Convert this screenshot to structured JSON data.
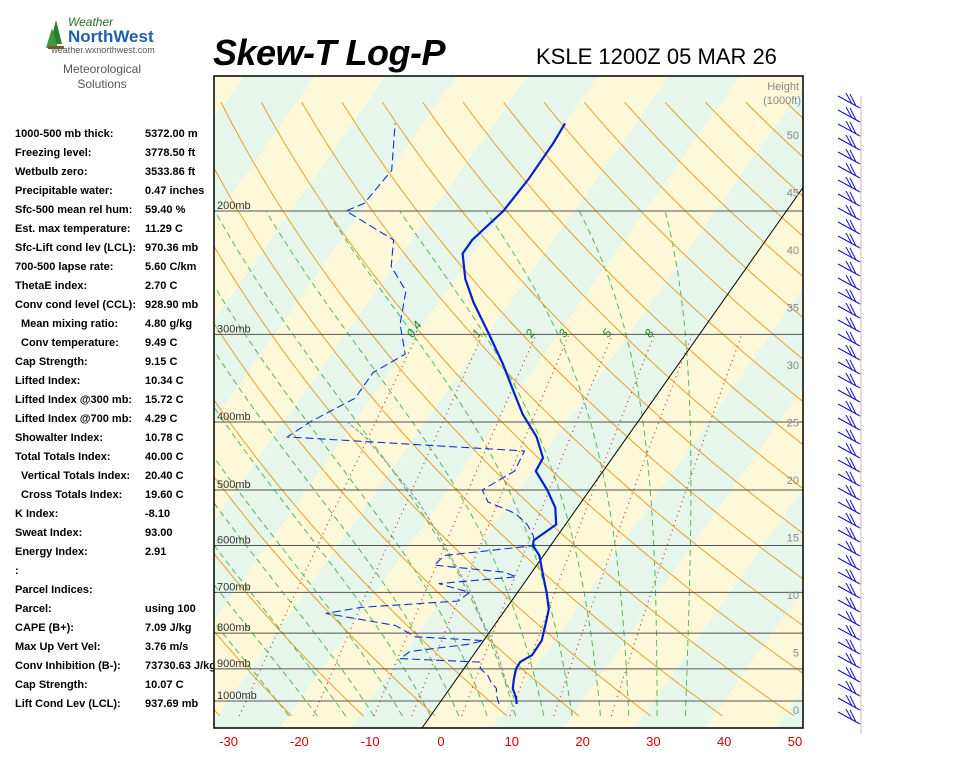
{
  "header": {
    "logo_text_1": "Weather",
    "logo_text_2": "NorthWest",
    "logo_url": "weather.wxnorthwest.com",
    "subtitle_1": "Meteorological",
    "subtitle_2": "Solutions",
    "title": "Skew-T Log-P",
    "station": "KSLE 1200Z 05 MAR 26"
  },
  "indices": [
    {
      "label": "1000-500 mb thick:",
      "value": "5372.00 m",
      "indent": false
    },
    {
      "label": "Freezing level:",
      "value": "3778.50 ft",
      "indent": false
    },
    {
      "label": "Wetbulb zero:",
      "value": "3533.86 ft",
      "indent": false
    },
    {
      "label": "Precipitable water:",
      "value": "0.47 inches",
      "indent": false
    },
    {
      "label": "Sfc-500 mean rel hum:",
      "value": "59.40 %",
      "indent": false
    },
    {
      "label": "Est. max temperature:",
      "value": "11.29 C",
      "indent": false
    },
    {
      "label": "Sfc-Lift cond lev (LCL):",
      "value": "970.36 mb",
      "indent": false
    },
    {
      "label": "700-500 lapse rate:",
      "value": "5.60 C/km",
      "indent": false
    },
    {
      "label": "ThetaE index:",
      "value": "2.70 C",
      "indent": false
    },
    {
      "label": "Conv cond level (CCL):",
      "value": "928.90 mb",
      "indent": false
    },
    {
      "label": "Mean mixing ratio:",
      "value": "4.80 g/kg",
      "indent": true
    },
    {
      "label": "Conv temperature:",
      "value": "9.49 C",
      "indent": true
    },
    {
      "label": "Cap Strength:",
      "value": "9.15 C",
      "indent": false
    },
    {
      "label": "Lifted Index:",
      "value": "10.34 C",
      "indent": false
    },
    {
      "label": "Lifted Index @300 mb:",
      "value": "15.72 C",
      "indent": false
    },
    {
      "label": "Lifted Index @700 mb:",
      "value": "4.29 C",
      "indent": false
    },
    {
      "label": "Showalter Index:",
      "value": "10.78 C",
      "indent": false
    },
    {
      "label": "Total Totals Index:",
      "value": "40.00 C",
      "indent": false
    },
    {
      "label": "Vertical Totals Index:",
      "value": "20.40 C",
      "indent": true
    },
    {
      "label": "Cross Totals Index:",
      "value": "19.60 C",
      "indent": true
    },
    {
      "label": "K Index:",
      "value": "-8.10",
      "indent": false
    },
    {
      "label": "Sweat Index:",
      "value": "93.00",
      "indent": false
    },
    {
      "label": "Energy Index:",
      "value": "2.91",
      "indent": false
    },
    {
      "label": ":",
      "value": "",
      "indent": false
    },
    {
      "label": "Parcel Indices:",
      "value": "",
      "indent": false
    },
    {
      "label": "Parcel:",
      "value": "using 100",
      "indent": false
    },
    {
      "label": "CAPE (B+):",
      "value": "7.09 J/kg",
      "indent": false
    },
    {
      "label": "Max Up Vert Vel:",
      "value": "3.76 m/s",
      "indent": false
    },
    {
      "label": "Conv Inhibition (B-):",
      "value": "73730.63 J/kg",
      "indent": false
    },
    {
      "label": "Cap Strength:",
      "value": "10.07 C",
      "indent": false
    },
    {
      "label": "Lift Cond Lev (LCL):",
      "value": "937.69 mb",
      "indent": false
    }
  ],
  "chart_data": {
    "type": "skew-t",
    "x_ticks": [
      -30,
      -20,
      -10,
      0,
      10,
      20,
      30,
      40,
      50
    ],
    "xlim": [
      -33,
      50
    ],
    "pressure_levels": [
      {
        "p": 200,
        "label": "200mb"
      },
      {
        "p": 300,
        "label": "300mb"
      },
      {
        "p": 400,
        "label": "400mb"
      },
      {
        "p": 500,
        "label": "500mb"
      },
      {
        "p": 600,
        "label": "600mb"
      },
      {
        "p": 700,
        "label": "700mb"
      },
      {
        "p": 800,
        "label": "800mb"
      },
      {
        "p": 900,
        "label": "900mb"
      },
      {
        "p": 1000,
        "label": "1000mb"
      }
    ],
    "height_axis": {
      "title_1": "Height",
      "title_2": "(1000ft)",
      "ticks": [
        0,
        5,
        10,
        15,
        20,
        25,
        30,
        35,
        40,
        45,
        50
      ]
    },
    "mixing_ratio_labels": [
      "0.4",
      "1",
      "2",
      "3",
      "5",
      "8"
    ],
    "temperature": [
      {
        "p": 1010,
        "t": 11.0
      },
      {
        "p": 990,
        "t": 10.3
      },
      {
        "p": 960,
        "t": 8.9
      },
      {
        "p": 930,
        "t": 8.1
      },
      {
        "p": 900,
        "t": 7.4
      },
      {
        "p": 880,
        "t": 7.3
      },
      {
        "p": 860,
        "t": 8.3
      },
      {
        "p": 820,
        "t": 8.2
      },
      {
        "p": 780,
        "t": 7.2
      },
      {
        "p": 740,
        "t": 6.1
      },
      {
        "p": 700,
        "t": 4.1
      },
      {
        "p": 660,
        "t": 1.8
      },
      {
        "p": 620,
        "t": -0.6
      },
      {
        "p": 600,
        "t": -2.5
      },
      {
        "p": 590,
        "t": -2.9
      },
      {
        "p": 560,
        "t": -1.3
      },
      {
        "p": 530,
        "t": -3.1
      },
      {
        "p": 500,
        "t": -6.0
      },
      {
        "p": 470,
        "t": -9.5
      },
      {
        "p": 450,
        "t": -9.8
      },
      {
        "p": 420,
        "t": -12.8
      },
      {
        "p": 390,
        "t": -17.0
      },
      {
        "p": 360,
        "t": -20.8
      },
      {
        "p": 330,
        "t": -24.9
      },
      {
        "p": 300,
        "t": -29.7
      },
      {
        "p": 270,
        "t": -35.1
      },
      {
        "p": 250,
        "t": -38.6
      },
      {
        "p": 230,
        "t": -41.5
      },
      {
        "p": 220,
        "t": -41.5
      },
      {
        "p": 200,
        "t": -40.0
      },
      {
        "p": 180,
        "t": -39.6
      },
      {
        "p": 160,
        "t": -39.7
      },
      {
        "p": 150,
        "t": -40.0
      }
    ],
    "dewpoint": [
      {
        "p": 1010,
        "t": 8.5
      },
      {
        "p": 980,
        "t": 7.2
      },
      {
        "p": 960,
        "t": 6.6
      },
      {
        "p": 940,
        "t": 5.2
      },
      {
        "p": 920,
        "t": 4.1
      },
      {
        "p": 900,
        "t": 2.4
      },
      {
        "p": 880,
        "t": 1.6
      },
      {
        "p": 870,
        "t": -10.0
      },
      {
        "p": 850,
        "t": -9.3
      },
      {
        "p": 830,
        "t": -1.8
      },
      {
        "p": 820,
        "t": 0.0
      },
      {
        "p": 810,
        "t": -10.0
      },
      {
        "p": 780,
        "t": -14.0
      },
      {
        "p": 750,
        "t": -25.0
      },
      {
        "p": 735,
        "t": -20.5
      },
      {
        "p": 720,
        "t": -7.5
      },
      {
        "p": 700,
        "t": -6.8
      },
      {
        "p": 680,
        "t": -12.0
      },
      {
        "p": 665,
        "t": -1.7
      },
      {
        "p": 655,
        "t": -3.9
      },
      {
        "p": 640,
        "t": -14.5
      },
      {
        "p": 620,
        "t": -14.0
      },
      {
        "p": 600,
        "t": -2.2
      },
      {
        "p": 580,
        "t": -3.5
      },
      {
        "p": 560,
        "t": -5.4
      },
      {
        "p": 540,
        "t": -8.2
      },
      {
        "p": 520,
        "t": -13.2
      },
      {
        "p": 500,
        "t": -15.2
      },
      {
        "p": 470,
        "t": -12.5
      },
      {
        "p": 440,
        "t": -13.1
      },
      {
        "p": 420,
        "t": -48.0
      },
      {
        "p": 400,
        "t": -46.3
      },
      {
        "p": 370,
        "t": -42.3
      },
      {
        "p": 340,
        "t": -42.3
      },
      {
        "p": 320,
        "t": -39.6
      },
      {
        "p": 290,
        "t": -43.3
      },
      {
        "p": 260,
        "t": -45.8
      },
      {
        "p": 240,
        "t": -50.3
      },
      {
        "p": 220,
        "t": -52.6
      },
      {
        "p": 200,
        "t": -62.2
      },
      {
        "p": 195,
        "t": -60.4
      },
      {
        "p": 175,
        "t": -59.8
      },
      {
        "p": 150,
        "t": -64.0
      }
    ],
    "parcel": [
      {
        "p": 1010,
        "t": 11.0
      },
      {
        "p": 940,
        "t": 7.3
      },
      {
        "p": 880,
        "t": 4.5
      },
      {
        "p": 820,
        "t": 1.2
      },
      {
        "p": 760,
        "t": -2.7
      },
      {
        "p": 700,
        "t": -6.6
      },
      {
        "p": 640,
        "t": -11.5
      },
      {
        "p": 580,
        "t": -16.8
      },
      {
        "p": 520,
        "t": -23.0
      },
      {
        "p": 460,
        "t": -31.0
      },
      {
        "p": 420,
        "t": -37.0
      },
      {
        "p": 400,
        "t": -41.0
      }
    ]
  },
  "colors": {
    "temperature": "#0022cc",
    "dewpoint": "#1133cc",
    "dry_adiabat": "#e8a22a",
    "moist_adiabat": "#55bb55",
    "mixing_ratio": "#cc3333",
    "isobar": "#555555",
    "band_warm": "#fdf8d8",
    "band_cool": "#e6f6ea"
  }
}
